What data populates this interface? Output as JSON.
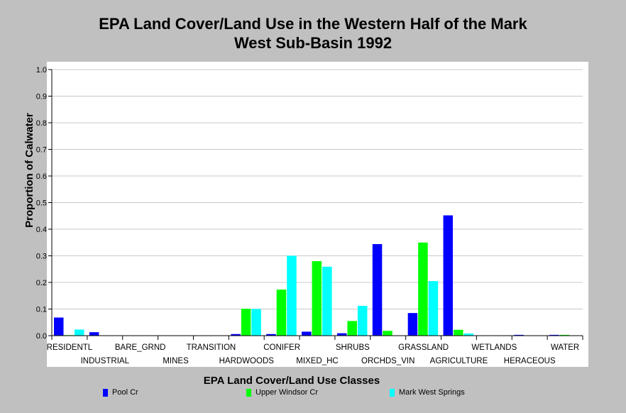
{
  "chart_data": {
    "type": "bar",
    "title_line1": "EPA Land Cover/Land Use in the Western Half of the Mark",
    "title_line2": "West Sub-Basin 1992",
    "xlabel": "EPA Land Cover/Land Use Classes",
    "ylabel": "Proportion of Calwater",
    "ylim": [
      0,
      1.0
    ],
    "yticks": [
      "0.0",
      "0.1",
      "0.2",
      "0.3",
      "0.4",
      "0.5",
      "0.6",
      "0.7",
      "0.8",
      "0.9",
      "1.0"
    ],
    "grid": true,
    "legend_position": "bottom",
    "categories": [
      "RESIDENTL",
      "INDUSTRIAL",
      "BARE_GRND",
      "MINES",
      "TRANSITION",
      "HARDWOODS",
      "CONIFER",
      "MIXED_HC",
      "SHRUBS",
      "ORCHDS_VIN",
      "GRASSLAND",
      "AGRICULTURE",
      "WETLANDS",
      "HERACEOUS",
      "WATER"
    ],
    "series": [
      {
        "name": "Pool Cr",
        "color": "#0000ff",
        "values": [
          0.068,
          0.013,
          0,
          0,
          0,
          0.006,
          0.006,
          0.015,
          0.009,
          0.344,
          0.085,
          0.452,
          0,
          0.003,
          0.003
        ]
      },
      {
        "name": "Upper Windsor Cr",
        "color": "#00ff00",
        "values": [
          0.002,
          0,
          0,
          0,
          0,
          0.101,
          0.173,
          0.28,
          0.055,
          0.018,
          0.35,
          0.022,
          0,
          0,
          0.003
        ]
      },
      {
        "name": "Mark West Springs",
        "color": "#00ffff",
        "values": [
          0.023,
          0,
          0,
          0,
          0,
          0.1,
          0.3,
          0.259,
          0.112,
          0,
          0.205,
          0.008,
          0,
          0,
          0
        ]
      }
    ]
  }
}
